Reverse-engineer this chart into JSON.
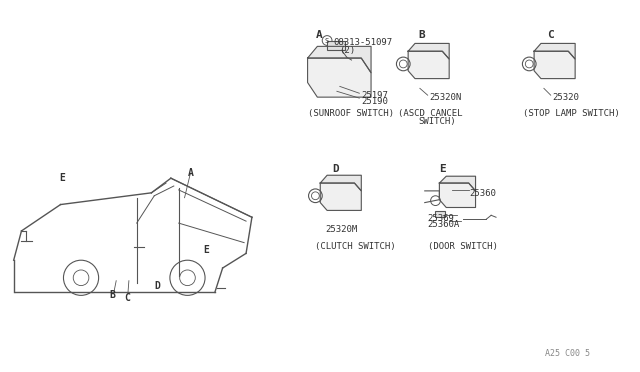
{
  "bg_color": "#ffffff",
  "line_color": "#555555",
  "text_color": "#333333",
  "watermark": "A25 C00 5",
  "sections": {
    "A_label": "A",
    "A_part1": "S 08313-51097",
    "A_part1b": "(2)",
    "A_part2": "25197",
    "A_part3": "25190",
    "A_caption": "(SUNROOF SWITCH)",
    "B_label": "B",
    "B_part": "25320N",
    "B_caption1": "(ASCD CANCEL",
    "B_caption2": "SWITCH)",
    "C_label": "C",
    "C_part": "25320",
    "C_caption": "(STOP LAMP SWITCH)",
    "D_label": "D",
    "D_part": "25320M",
    "D_caption": "(CLUTCH SWITCH)",
    "E_label": "E",
    "E_part1": "25360",
    "E_part2": "25369",
    "E_part3": "25360A",
    "E_caption": "(DOOR SWITCH)"
  }
}
